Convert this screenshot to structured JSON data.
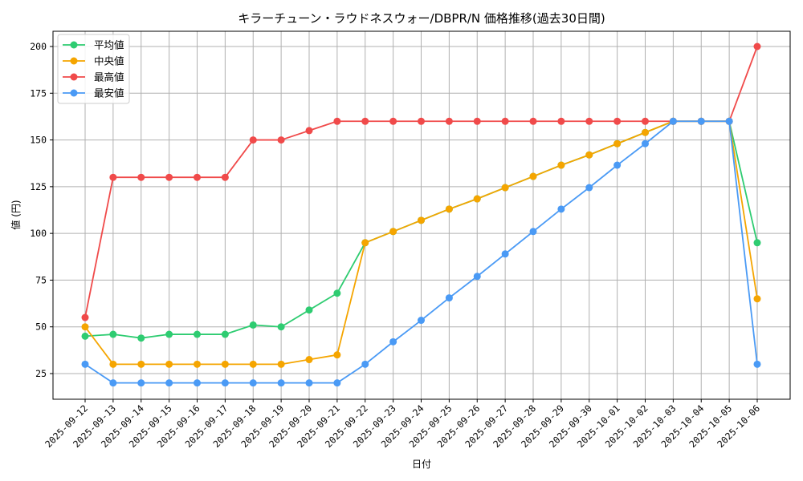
{
  "chart_data": {
    "type": "line",
    "title": "キラーチューン・ラウドネスウォー/DBPR/N 価格推移(過去30日間)",
    "xlabel": "日付",
    "ylabel": "値 (円)",
    "ylim": [
      11,
      209
    ],
    "yticks": [
      25,
      50,
      75,
      100,
      125,
      150,
      175,
      200
    ],
    "grid": true,
    "legend_position": "upper left",
    "x": [
      "2025-09-12",
      "2025-09-13",
      "2025-09-14",
      "2025-09-15",
      "2025-09-16",
      "2025-09-17",
      "2025-09-18",
      "2025-09-19",
      "2025-09-20",
      "2025-09-21",
      "2025-09-22",
      "2025-09-23",
      "2025-09-24",
      "2025-09-25",
      "2025-09-26",
      "2025-09-27",
      "2025-09-28",
      "2025-09-29",
      "2025-09-30",
      "2025-10-01",
      "2025-10-02",
      "2025-10-03",
      "2025-10-04",
      "2025-10-05",
      "2025-10-06"
    ],
    "series": [
      {
        "name": "平均値",
        "color": "#2ecc71",
        "values": [
          45,
          46,
          44,
          46,
          46,
          46,
          51,
          50,
          59,
          68,
          95,
          101,
          107,
          113,
          118.5,
          124.5,
          130.5,
          136.5,
          142,
          148,
          154,
          160,
          160,
          160,
          95
        ]
      },
      {
        "name": "中央値",
        "color": "#f5a500",
        "values": [
          50,
          30,
          30,
          30,
          30,
          30,
          30,
          30,
          32.5,
          35,
          95,
          101,
          107,
          113,
          118.5,
          124.5,
          130.5,
          136.5,
          142,
          148,
          154,
          160,
          160,
          160,
          65
        ]
      },
      {
        "name": "最高値",
        "color": "#f04a4a",
        "values": [
          55,
          130,
          130,
          130,
          130,
          130,
          150,
          150,
          155,
          160,
          160,
          160,
          160,
          160,
          160,
          160,
          160,
          160,
          160,
          160,
          160,
          160,
          160,
          160,
          200
        ]
      },
      {
        "name": "最安値",
        "color": "#4a9af5",
        "values": [
          30,
          20,
          20,
          20,
          20,
          20,
          20,
          20,
          20,
          20,
          30,
          42,
          53.5,
          65.5,
          77,
          89,
          101,
          113,
          124.5,
          136.5,
          148,
          160,
          160,
          160,
          30
        ]
      }
    ]
  }
}
